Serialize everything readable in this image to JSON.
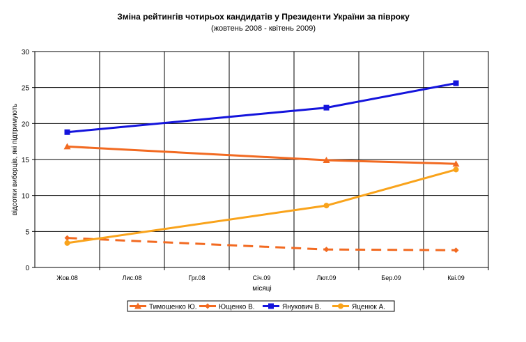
{
  "chart_data": {
    "type": "line",
    "title": "Зміна рейтингів чотирьох кандидатів у Президенти України за півроку",
    "subtitle": "(жовтень 2008 - квітень 2009)",
    "xlabel": "місяці",
    "ylabel": "відсотки виборців, які підтримують",
    "categories": [
      "Жов.08",
      "Лис.08",
      "Грг.08",
      "Січ.09",
      "Лют.09",
      "Бер.09",
      "Кві.09"
    ],
    "ylim": [
      0,
      30
    ],
    "yticks": [
      0,
      5,
      10,
      15,
      20,
      25,
      30
    ],
    "grid": true,
    "legend_position": "bottom",
    "series": [
      {
        "name": "Тимошенко Ю.",
        "values": [
          16.8,
          null,
          null,
          null,
          14.9,
          null,
          14.4
        ],
        "color": "#f26a21",
        "marker": "triangle",
        "dashed": false
      },
      {
        "name": "Ющенко В.",
        "values": [
          4.1,
          null,
          null,
          null,
          2.5,
          null,
          2.4
        ],
        "color": "#f26a21",
        "marker": "diamond",
        "dashed": true
      },
      {
        "name": "Янукович В.",
        "values": [
          18.8,
          null,
          null,
          null,
          22.2,
          null,
          25.6
        ],
        "color": "#1414dc",
        "marker": "square",
        "dashed": false
      },
      {
        "name": "Яценюк А.",
        "values": [
          3.4,
          null,
          null,
          null,
          8.6,
          null,
          13.6
        ],
        "color": "#f9a31b",
        "marker": "circle",
        "dashed": false
      }
    ]
  }
}
